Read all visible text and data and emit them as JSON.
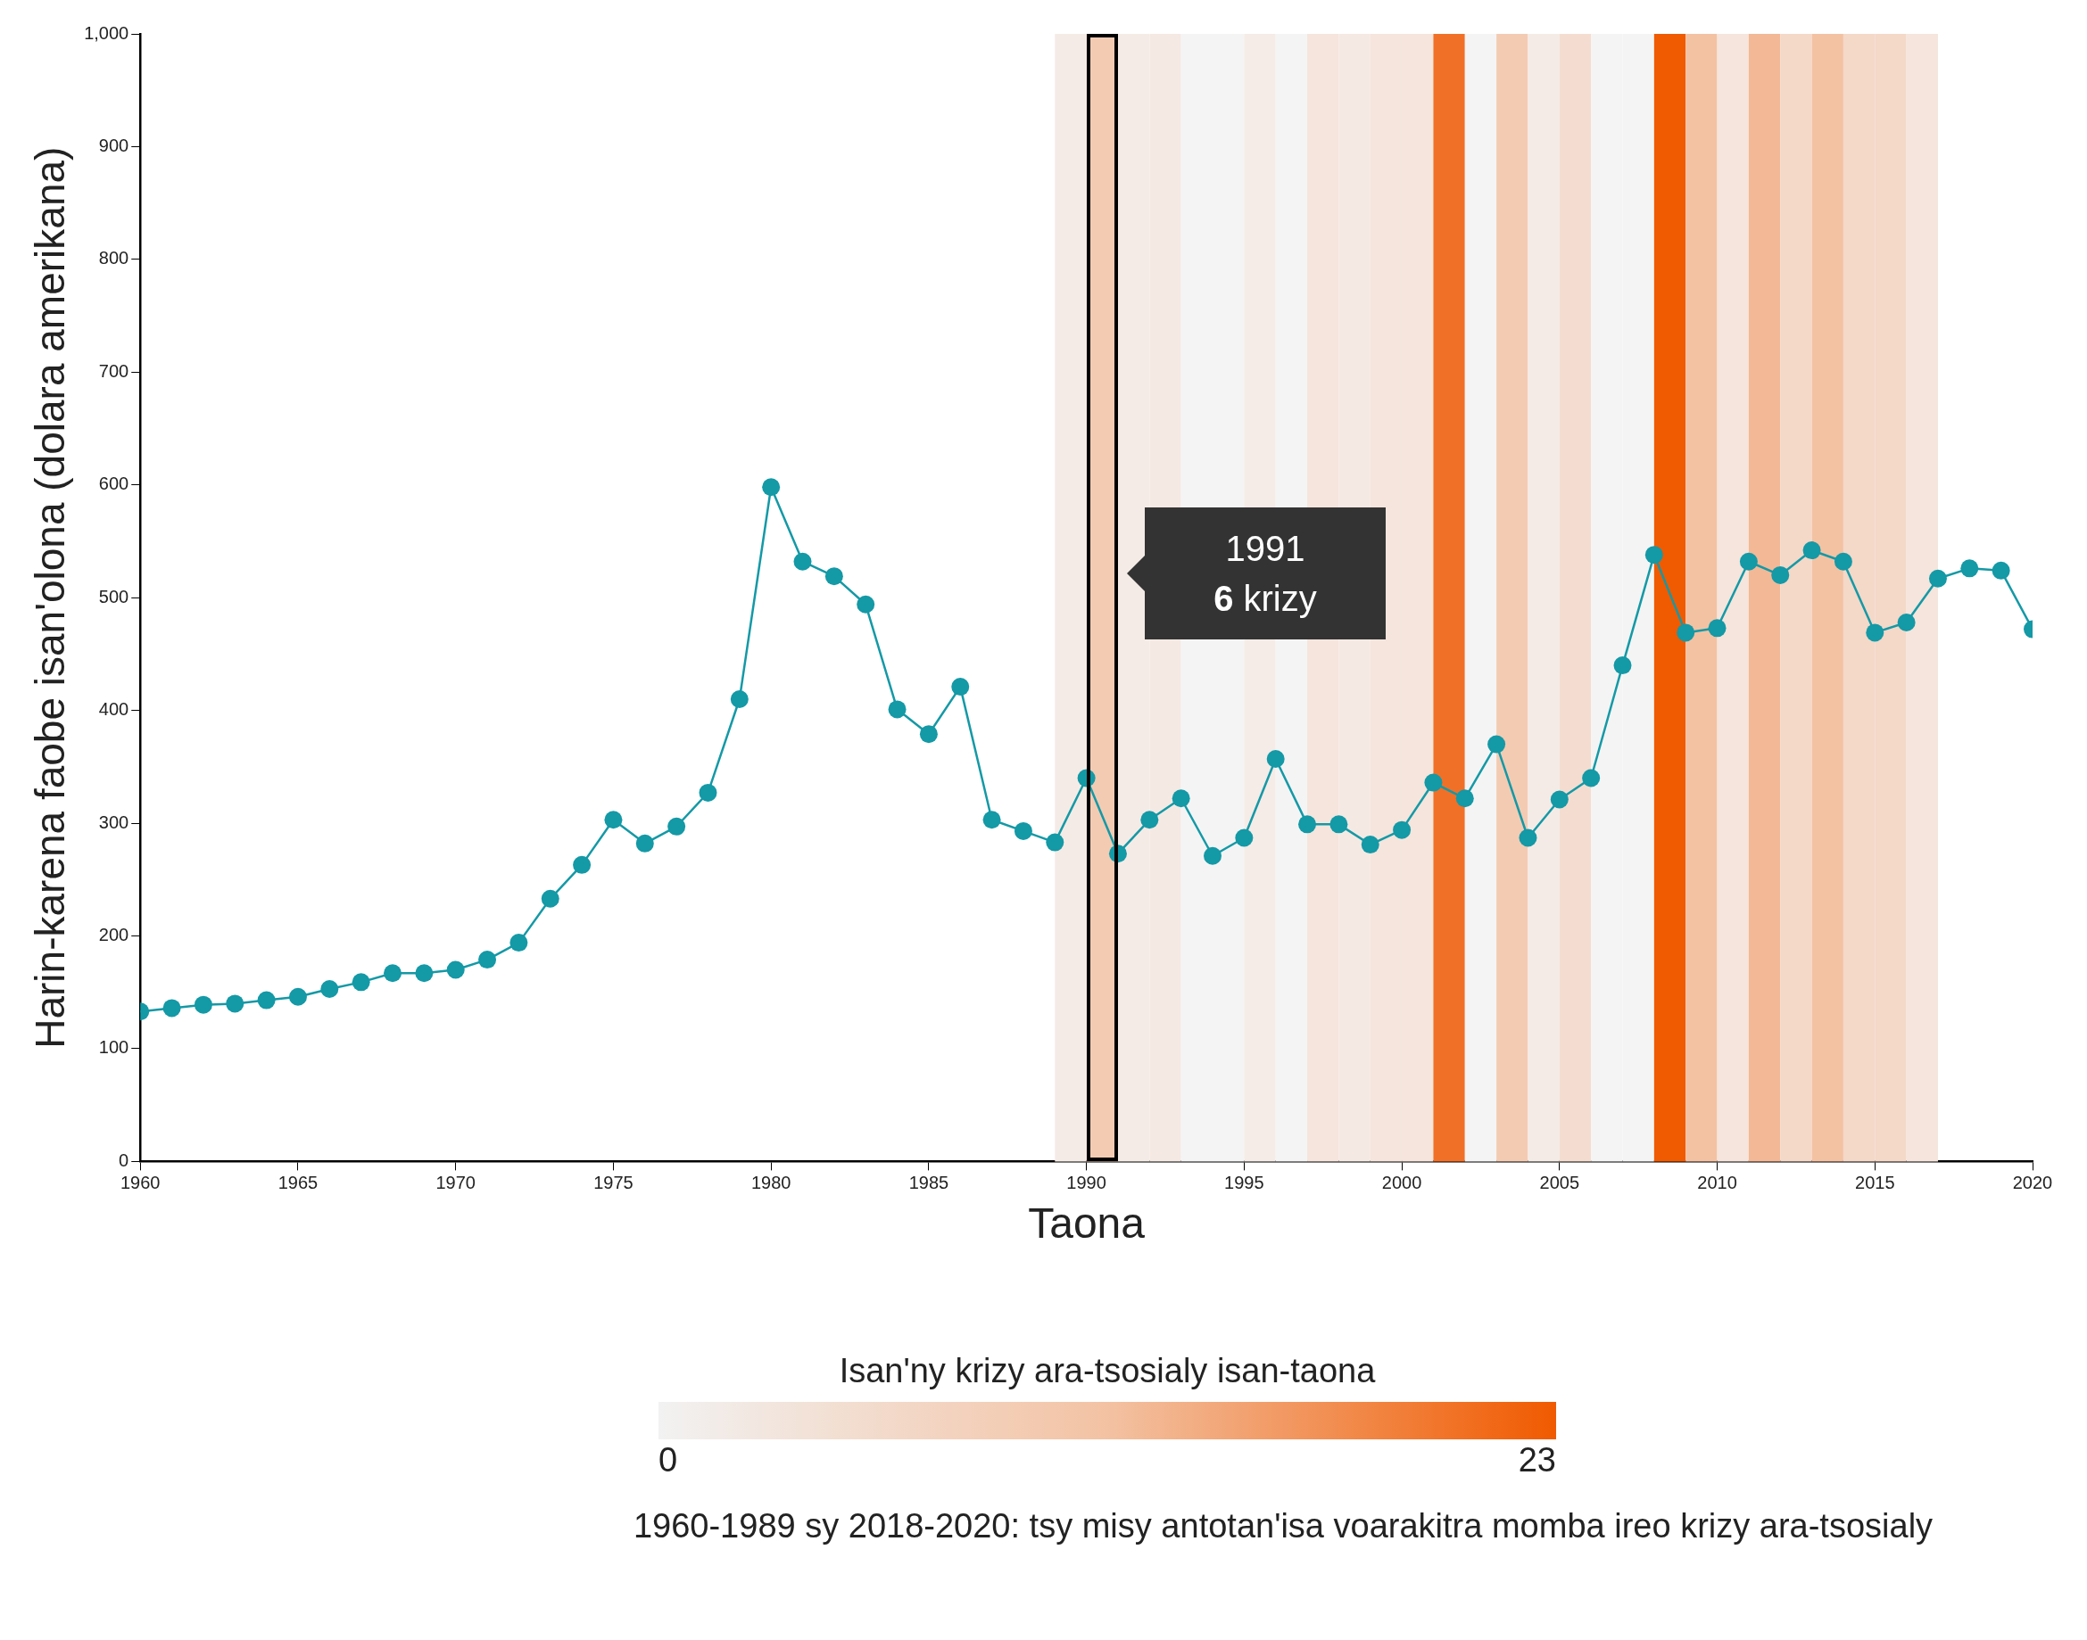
{
  "chart_data": {
    "type": "line",
    "xlabel": "Taona",
    "ylabel": "Harin-karena faobe isan'olona (dolara amerikana)",
    "clabel": "Isan'ny krizy ara-tsosialy isan-taona",
    "clim": [
      0,
      23
    ],
    "cticks": [
      0,
      23
    ],
    "x": [
      1960,
      1961,
      1962,
      1963,
      1964,
      1965,
      1966,
      1967,
      1968,
      1969,
      1970,
      1971,
      1972,
      1973,
      1974,
      1975,
      1976,
      1977,
      1978,
      1979,
      1980,
      1981,
      1982,
      1983,
      1984,
      1985,
      1986,
      1987,
      1988,
      1989,
      1990,
      1991,
      1992,
      1993,
      1994,
      1995,
      1996,
      1997,
      1998,
      1999,
      2000,
      2001,
      2002,
      2003,
      2004,
      2005,
      2006,
      2007,
      2008,
      2009,
      2010,
      2011,
      2012,
      2013,
      2014,
      2015,
      2016,
      2017,
      2018,
      2019,
      2020
    ],
    "series": [
      {
        "color": "#1499a6",
        "values": [
          133,
          136,
          139,
          140,
          143,
          146,
          153,
          159,
          167,
          167,
          170,
          179,
          194,
          233,
          263,
          303,
          282,
          297,
          327,
          410,
          598,
          532,
          519,
          494,
          401,
          379,
          421,
          303,
          293,
          283,
          340,
          273,
          303,
          322,
          271,
          287,
          357,
          299,
          299,
          281,
          294,
          336,
          322,
          370,
          287,
          321,
          340,
          440,
          538,
          469,
          473,
          532,
          520,
          542,
          532,
          469,
          478,
          517,
          526,
          524,
          472
        ]
      }
    ],
    "xlim": [
      1960,
      2020
    ],
    "xticks": [
      1960,
      1965,
      1970,
      1975,
      1980,
      1985,
      1990,
      1995,
      2000,
      2005,
      2010,
      2015,
      2020
    ],
    "ylim": [
      0,
      1000
    ],
    "yticks": [
      0,
      100,
      200,
      300,
      400,
      500,
      600,
      700,
      800,
      900,
      {
        "value": 1000,
        "label": "1,000"
      }
    ],
    "marker": "circle",
    "legend": false,
    "grid": false,
    "bands": [
      {
        "axis": "x",
        "from": 1989,
        "to": 1990,
        "color": "#f5ebe6"
      },
      {
        "axis": "x",
        "from": 1990,
        "to": 1991,
        "color": "#f3cbb3"
      },
      {
        "axis": "x",
        "from": 1991,
        "to": 1992,
        "color": "#f5ebe6"
      },
      {
        "axis": "x",
        "from": 1992,
        "to": 1993,
        "color": "#f5e9e3"
      },
      {
        "axis": "x",
        "from": 1993,
        "to": 1994,
        "color": "#f4f4f4"
      },
      {
        "axis": "x",
        "from": 1994,
        "to": 1995,
        "color": "#f4f4f4"
      },
      {
        "axis": "x",
        "from": 1995,
        "to": 1996,
        "color": "#f5ebe7"
      },
      {
        "axis": "x",
        "from": 1996,
        "to": 1997,
        "color": "#f4f4f4"
      },
      {
        "axis": "x",
        "from": 1997,
        "to": 1998,
        "color": "#f5e5dc"
      },
      {
        "axis": "x",
        "from": 1998,
        "to": 1999,
        "color": "#f5e9e3"
      },
      {
        "axis": "x",
        "from": 1999,
        "to": 2000,
        "color": "#f5e5dd"
      },
      {
        "axis": "x",
        "from": 2000,
        "to": 2001,
        "color": "#f5e5dc"
      },
      {
        "axis": "x",
        "from": 2001,
        "to": 2002,
        "color": "#f07028"
      },
      {
        "axis": "x",
        "from": 2002,
        "to": 2003,
        "color": "#f4f4f4"
      },
      {
        "axis": "x",
        "from": 2003,
        "to": 2004,
        "color": "#f3cbb3"
      },
      {
        "axis": "x",
        "from": 2004,
        "to": 2005,
        "color": "#f5ebe6"
      },
      {
        "axis": "x",
        "from": 2005,
        "to": 2006,
        "color": "#f4ddd0"
      },
      {
        "axis": "x",
        "from": 2006,
        "to": 2007,
        "color": "#f4f4f4"
      },
      {
        "axis": "x",
        "from": 2007,
        "to": 2008,
        "color": "#f4f4f4"
      },
      {
        "axis": "x",
        "from": 2008,
        "to": 2009,
        "color": "#f05a00"
      },
      {
        "axis": "x",
        "from": 2009,
        "to": 2010,
        "color": "#f3c2a3"
      },
      {
        "axis": "x",
        "from": 2010,
        "to": 2011,
        "color": "#f5e5dc"
      },
      {
        "axis": "x",
        "from": 2011,
        "to": 2012,
        "color": "#f3b896"
      },
      {
        "axis": "x",
        "from": 2012,
        "to": 2013,
        "color": "#f4d8c8"
      },
      {
        "axis": "x",
        "from": 2013,
        "to": 2014,
        "color": "#f3c2a3"
      },
      {
        "axis": "x",
        "from": 2014,
        "to": 2015,
        "color": "#f4d8c8"
      },
      {
        "axis": "x",
        "from": 2015,
        "to": 2016,
        "color": "#f4d8c8"
      },
      {
        "axis": "x",
        "from": 2016,
        "to": 2017,
        "color": "#f5e5dc"
      }
    ],
    "annotations": [
      "1991\n6 krizy",
      "1960-1989 sy 2018-2020: tsy misy antotan'isa voarakitra momba ireo krizy ara-tsosialy"
    ]
  }
}
